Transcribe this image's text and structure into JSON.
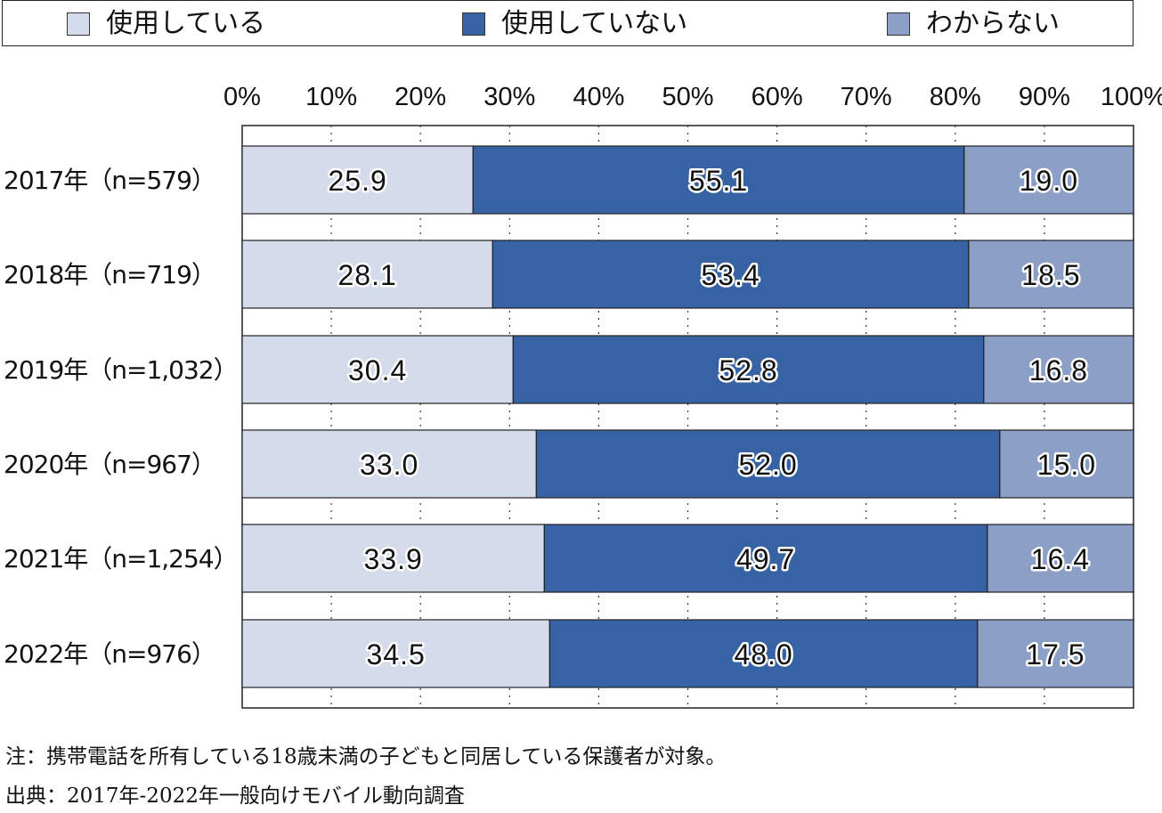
{
  "legend": {
    "items": [
      {
        "label": "使用している",
        "color": "#d4dbea"
      },
      {
        "label": "使用していない",
        "color": "#3763a5"
      },
      {
        "label": "わからない",
        "color": "#8b9fc7"
      }
    ]
  },
  "chart_data": {
    "type": "bar",
    "orientation": "horizontal",
    "stacked": true,
    "title": "",
    "xlabel": "",
    "ylabel": "",
    "xlim": [
      0,
      100
    ],
    "x_ticks": [
      "0%",
      "10%",
      "20%",
      "30%",
      "40%",
      "50%",
      "60%",
      "70%",
      "80%",
      "90%",
      "100%"
    ],
    "grid": true,
    "legend_position": "top",
    "categories": [
      "2017年（n=579）",
      "2018年（n=719）",
      "2019年（n=1,032）",
      "2020年（n=967）",
      "2021年（n=1,254）",
      "2022年（n=976）"
    ],
    "series": [
      {
        "name": "使用している",
        "values": [
          25.9,
          28.1,
          30.4,
          33.0,
          33.9,
          34.5
        ],
        "labels": [
          "25.9",
          "28.1",
          "30.4",
          "33.0",
          "33.9",
          "34.5"
        ]
      },
      {
        "name": "使用していない",
        "values": [
          55.1,
          53.4,
          52.8,
          52.0,
          49.7,
          48.0
        ],
        "labels": [
          "55.1",
          "53.4",
          "52.8",
          "52.0",
          "49.7",
          "48.0"
        ]
      },
      {
        "name": "わからない",
        "values": [
          19.0,
          18.5,
          16.8,
          15.0,
          16.4,
          17.5
        ],
        "labels": [
          "19.0",
          "18.5",
          "16.8",
          "15.0",
          "16.4",
          "17.5"
        ]
      }
    ]
  },
  "notes": {
    "note": "注：携帯電話を所有している18歳未満の子どもと同居している保護者が対象。",
    "source": "出典：2017年-2022年一般向けモバイル動向調査"
  }
}
